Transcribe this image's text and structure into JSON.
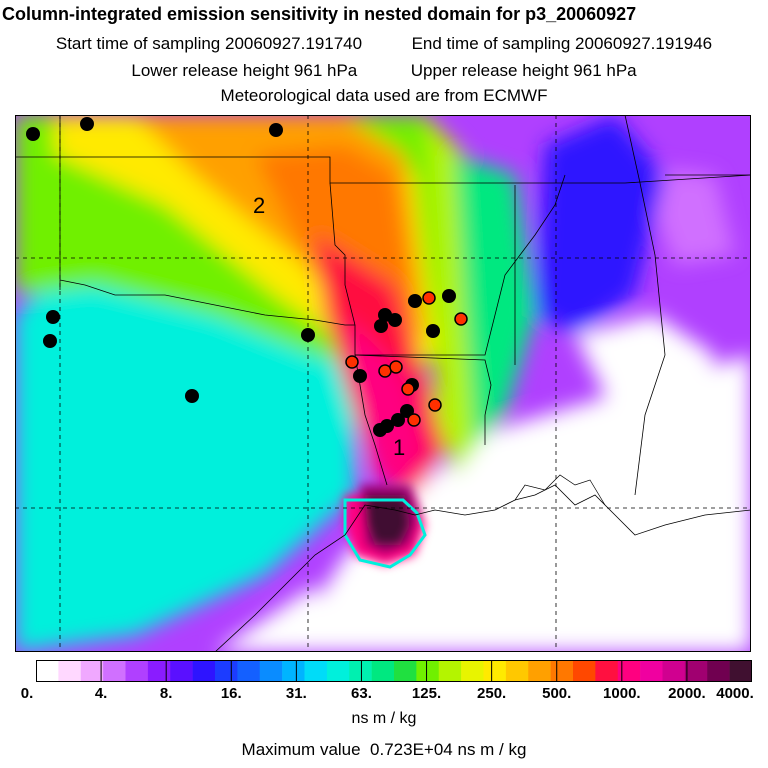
{
  "header": {
    "title": "Column-integrated emission sensitivity in nested domain for p3_20060927",
    "start_label": "Start time of sampling",
    "start_value": "20060927.191740",
    "end_label": "End time of sampling",
    "end_value": "20060927.191946",
    "lower_label": "Lower release height",
    "lower_value": "961 hPa",
    "upper_label": "Upper release height",
    "upper_value": "961 hPa",
    "met": "Meteorological data used are from ECMWF"
  },
  "map": {
    "labels": [
      "1",
      "2"
    ]
  },
  "colorbar": {
    "tick_labels": [
      "0.",
      "4.",
      "8.",
      "16.",
      "31.",
      "63.",
      "125.",
      "250.",
      "500.",
      "1000.",
      "2000.",
      "4000."
    ],
    "colors": [
      "#ffffff",
      "#ffd8ff",
      "#f0a8ff",
      "#d070ff",
      "#b040ff",
      "#8a1cff",
      "#5a10ff",
      "#2e14ff",
      "#1c3cff",
      "#1460ff",
      "#0a8cff",
      "#00b4ff",
      "#00dcf8",
      "#00f0dc",
      "#00f0b0",
      "#00e880",
      "#20e040",
      "#70f000",
      "#b4f400",
      "#e8f400",
      "#ffea00",
      "#ffc800",
      "#ffa000",
      "#ff7800",
      "#ff4800",
      "#ff1040",
      "#ff0080",
      "#f000a0",
      "#d00090",
      "#a00070",
      "#700050",
      "#401030"
    ],
    "units": "ns m / kg",
    "max_label": "Maximum value",
    "max_value": "0.723E+04 ns m / kg"
  }
}
